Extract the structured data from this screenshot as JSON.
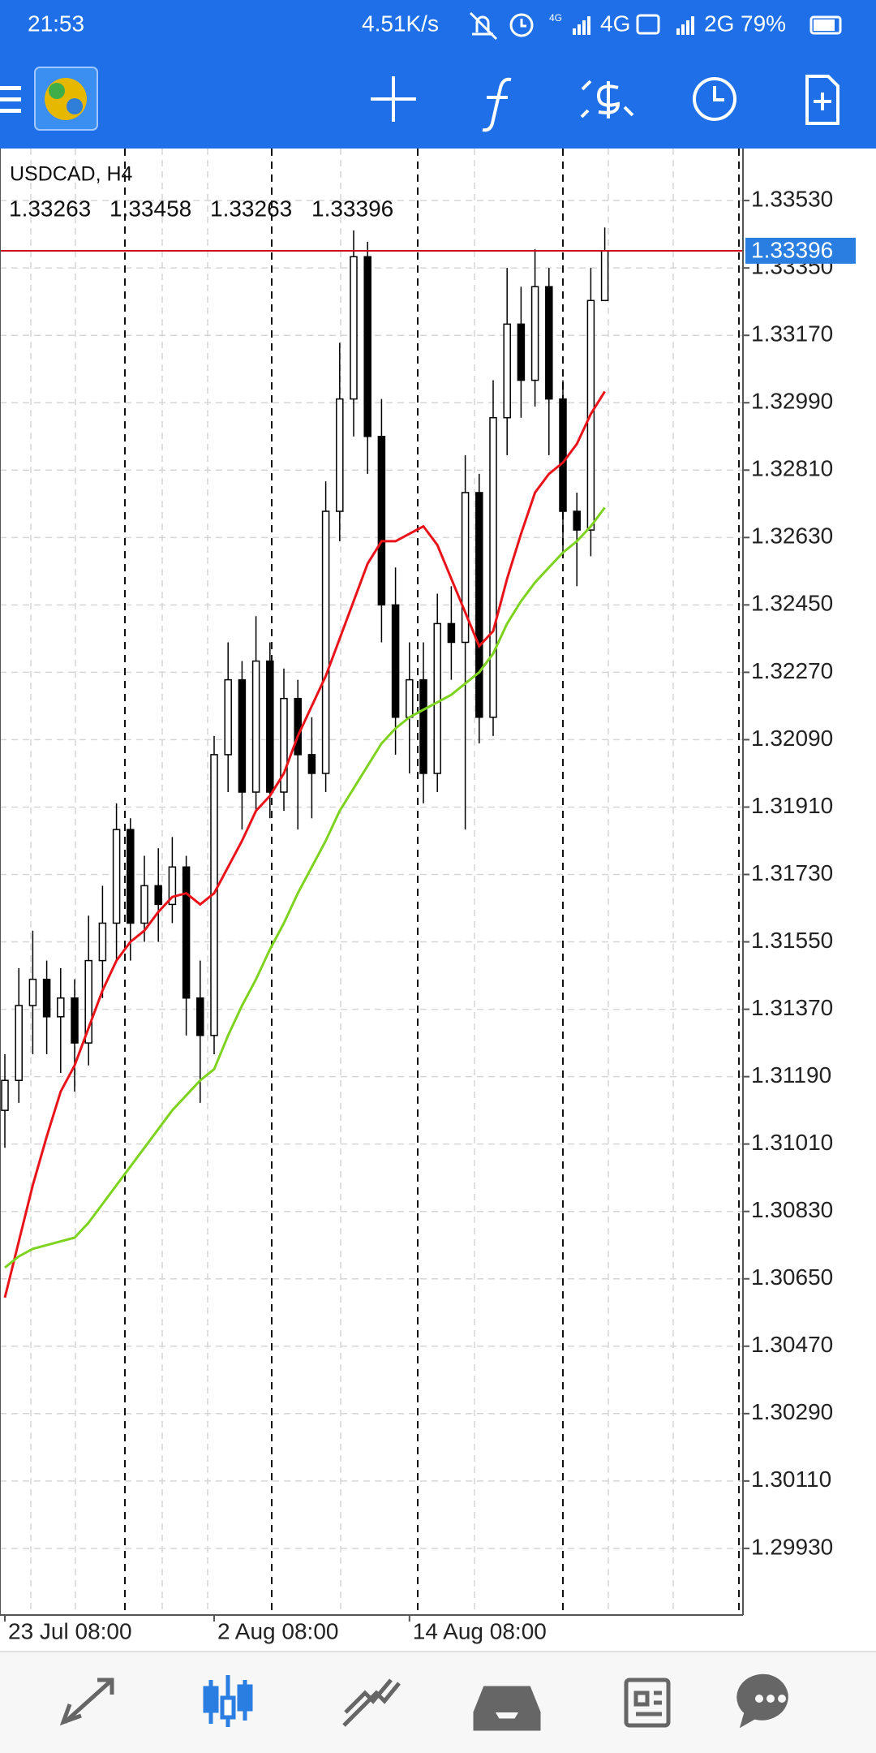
{
  "status_bar": {
    "time": "21:53",
    "speed": "4.51K/s",
    "network_small": "4G",
    "network_1": "4G",
    "network_2": "2G",
    "battery": "79%"
  },
  "chart_data": {
    "type": "candlestick",
    "title": "USDCAD, H4",
    "categories": [
      "23 Jul 08:00",
      null,
      null,
      null,
      null,
      null,
      null,
      null,
      null,
      null,
      null,
      null,
      null,
      null,
      null,
      "2 Aug 08:00",
      null,
      null,
      null,
      null,
      null,
      null,
      null,
      null,
      null,
      null,
      null,
      null,
      null,
      "14 Aug 08:00",
      null,
      null,
      null,
      null,
      null,
      null,
      null,
      null,
      null,
      null,
      null,
      null,
      null,
      null
    ],
    "open": [
      1.311,
      1.3118,
      1.3138,
      1.3145,
      1.3135,
      1.314,
      1.3128,
      1.315,
      1.316,
      1.3185,
      1.316,
      1.317,
      1.3165,
      1.3175,
      1.314,
      1.313,
      1.3205,
      1.3225,
      1.3195,
      1.323,
      1.3195,
      1.322,
      1.3205,
      1.32,
      1.327,
      1.33,
      1.3338,
      1.329,
      1.3245,
      1.3215,
      1.3225,
      1.32,
      1.324,
      1.3235,
      1.3275,
      1.3215,
      1.3295,
      1.332,
      1.3305,
      1.333,
      1.33,
      1.327,
      1.3265,
      1.33263
    ],
    "high": [
      1.3125,
      1.3148,
      1.3158,
      1.315,
      1.3148,
      1.3145,
      1.3162,
      1.317,
      1.3192,
      1.3188,
      1.3178,
      1.318,
      1.3183,
      1.3178,
      1.315,
      1.321,
      1.3235,
      1.323,
      1.3242,
      1.3235,
      1.3228,
      1.3225,
      1.3215,
      1.3278,
      1.3315,
      1.3345,
      1.3342,
      1.33,
      1.3255,
      1.3235,
      1.3235,
      1.3248,
      1.325,
      1.3285,
      1.328,
      1.3305,
      1.3335,
      1.333,
      1.334,
      1.3335,
      1.3305,
      1.3275,
      1.3335,
      1.33458
    ],
    "low": [
      1.31,
      1.3112,
      1.3125,
      1.3125,
      1.312,
      1.3115,
      1.3122,
      1.314,
      1.315,
      1.315,
      1.3155,
      1.3155,
      1.316,
      1.313,
      1.3112,
      1.3125,
      1.3195,
      1.3185,
      1.319,
      1.3188,
      1.319,
      1.3185,
      1.3188,
      1.3195,
      1.3262,
      1.329,
      1.328,
      1.3235,
      1.3205,
      1.32,
      1.3192,
      1.3195,
      1.3225,
      1.3185,
      1.3208,
      1.321,
      1.3285,
      1.3295,
      1.3298,
      1.3285,
      1.3258,
      1.325,
      1.3258,
      1.33263
    ],
    "close": [
      1.3118,
      1.3138,
      1.3145,
      1.3135,
      1.314,
      1.3128,
      1.315,
      1.316,
      1.3185,
      1.316,
      1.317,
      1.3165,
      1.3175,
      1.314,
      1.313,
      1.3205,
      1.3225,
      1.3195,
      1.323,
      1.3195,
      1.322,
      1.3205,
      1.32,
      1.327,
      1.33,
      1.3338,
      1.329,
      1.3245,
      1.3215,
      1.3225,
      1.32,
      1.324,
      1.3235,
      1.3275,
      1.3215,
      1.3295,
      1.332,
      1.3305,
      1.333,
      1.33,
      1.327,
      1.3265,
      1.33263,
      1.33396
    ],
    "candle_color": "#000000",
    "series": [
      {
        "color": "#e8141a",
        "values": [
          1.306,
          1.3075,
          1.309,
          1.3103,
          1.3115,
          1.3122,
          1.3132,
          1.3142,
          1.315,
          1.3155,
          1.3158,
          1.3163,
          1.3167,
          1.3168,
          1.3165,
          1.3168,
          1.3175,
          1.3182,
          1.319,
          1.3194,
          1.32,
          1.321,
          1.3218,
          1.3226,
          1.3236,
          1.3246,
          1.3256,
          1.3262,
          1.3262,
          1.3264,
          1.3266,
          1.3261,
          1.3252,
          1.3243,
          1.3234,
          1.3238,
          1.3252,
          1.3264,
          1.3275,
          1.328,
          1.3283,
          1.3288,
          1.3296,
          1.3302
        ]
      },
      {
        "color": "#7ed321",
        "values": [
          1.3068,
          1.3071,
          1.3073,
          1.3074,
          1.3075,
          1.3076,
          1.308,
          1.3085,
          1.309,
          1.3095,
          1.31,
          1.3105,
          1.311,
          1.3114,
          1.3118,
          1.3121,
          1.313,
          1.3138,
          1.3145,
          1.3153,
          1.316,
          1.3168,
          1.3175,
          1.3182,
          1.319,
          1.3196,
          1.3202,
          1.3208,
          1.3212,
          1.3215,
          1.3217,
          1.3219,
          1.3221,
          1.3224,
          1.3227,
          1.3232,
          1.324,
          1.3246,
          1.3251,
          1.3255,
          1.3259,
          1.3262,
          1.3266,
          1.3271
        ]
      }
    ],
    "last_price": 1.33396,
    "last_price_color": "#d0021b",
    "ylim": [
      1.29752,
      1.33669
    ],
    "yticks": [
      {
        "value": 1.3353,
        "label": "1.33530"
      },
      {
        "value": 1.3335,
        "label": "1.33350"
      },
      {
        "value": 1.3317,
        "label": "1.33170"
      },
      {
        "value": 1.3299,
        "label": "1.32990"
      },
      {
        "value": 1.3281,
        "label": "1.32810"
      },
      {
        "value": 1.3263,
        "label": "1.32630"
      },
      {
        "value": 1.3245,
        "label": "1.32450"
      },
      {
        "value": 1.3227,
        "label": "1.32270"
      },
      {
        "value": 1.3209,
        "label": "1.32090"
      },
      {
        "value": 1.3191,
        "label": "1.31910"
      },
      {
        "value": 1.3173,
        "label": "1.31730"
      },
      {
        "value": 1.3155,
        "label": "1.31550"
      },
      {
        "value": 1.3137,
        "label": "1.31370"
      },
      {
        "value": 1.3119,
        "label": "1.31190"
      },
      {
        "value": 1.3101,
        "label": "1.31010"
      },
      {
        "value": 1.3083,
        "label": "1.30830"
      },
      {
        "value": 1.3065,
        "label": "1.30650"
      },
      {
        "value": 1.3047,
        "label": "1.30470"
      },
      {
        "value": 1.3029,
        "label": "1.30290"
      },
      {
        "value": 1.3011,
        "label": "1.30110"
      },
      {
        "value": 1.2993,
        "label": "1.29930"
      }
    ],
    "grid": true
  }
}
